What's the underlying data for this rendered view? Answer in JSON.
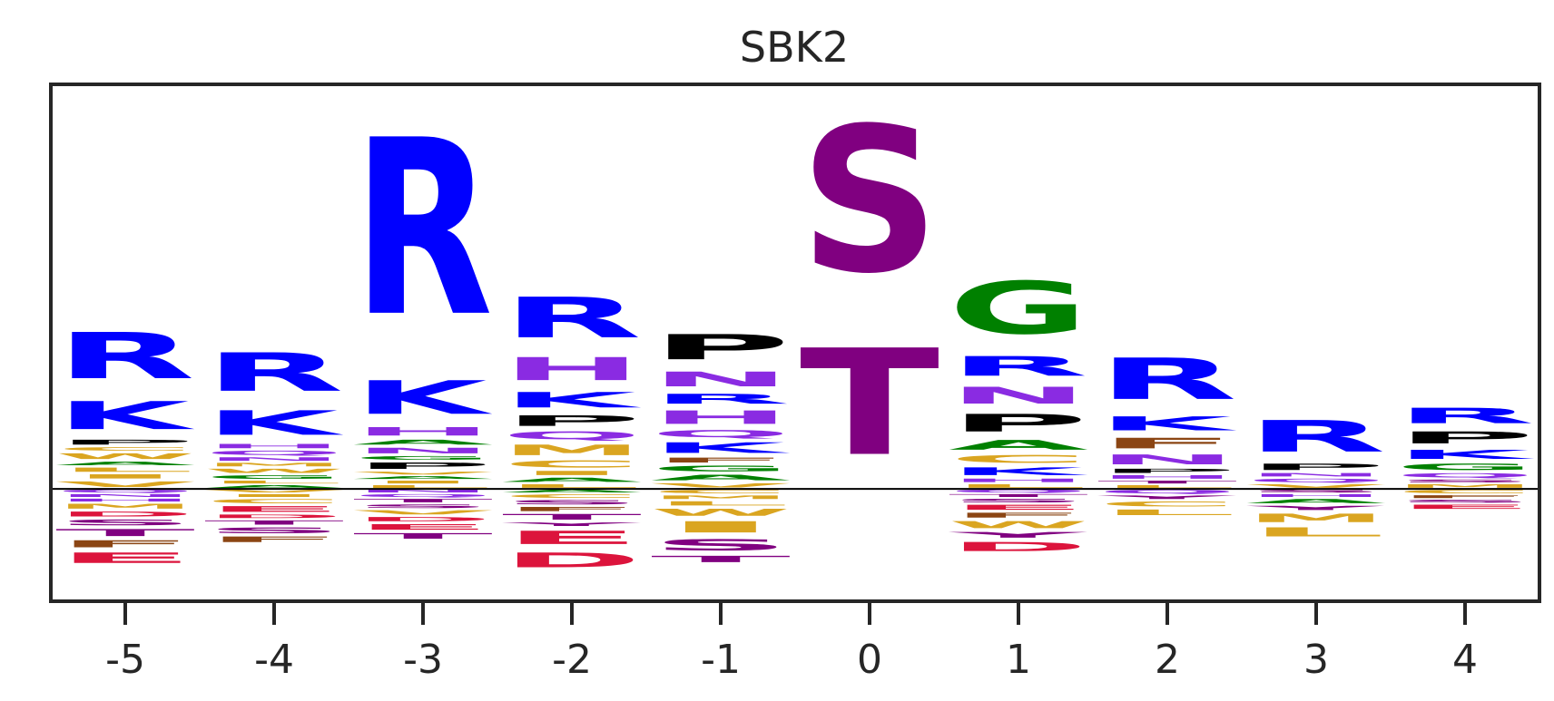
{
  "chart_data": {
    "type": "sequence-logo",
    "title": "SBK2",
    "xlabel": "",
    "ylabel": "",
    "x_ticks": [
      "-5",
      "-4",
      "-3",
      "-2",
      "-1",
      "0",
      "1",
      "2",
      "3",
      "4"
    ],
    "ylim": [
      -1.0,
      3.6
    ],
    "baseline": 0,
    "grid": false,
    "legend": "none",
    "colors": {
      "R": "#0000ff",
      "K": "#0000ff",
      "H": "#8a2be2",
      "S": "#800080",
      "T": "#800080",
      "Y": "#800080",
      "N": "#8a2be2",
      "Q": "#8a2be2",
      "G": "#008000",
      "A": "#008000",
      "P": "#000000",
      "D": "#dc143c",
      "E": "#dc143c",
      "C": "#daa520",
      "M": "#daa520",
      "V": "#daa520",
      "I": "#daa520",
      "L": "#daa520",
      "W": "#daa520",
      "F": "#8b4513"
    },
    "positions": [
      {
        "pos": "-5",
        "up": [
          [
            "V",
            0.08
          ],
          [
            "I",
            0.06
          ],
          [
            "L",
            0.06
          ],
          [
            "A",
            0.05
          ],
          [
            "W",
            0.08
          ],
          [
            "C",
            0.05
          ],
          [
            "P",
            0.07
          ],
          [
            "K",
            0.4
          ],
          [
            "R",
            0.66
          ]
        ],
        "down": [
          [
            "Q",
            0.04
          ],
          [
            "N",
            0.04
          ],
          [
            "H",
            0.04
          ],
          [
            "M",
            0.07
          ],
          [
            "D",
            0.07
          ],
          [
            "S",
            0.08
          ],
          [
            "T",
            0.1
          ],
          [
            "F",
            0.1
          ],
          [
            "E",
            0.15
          ]
        ]
      },
      {
        "pos": "-4",
        "up": [
          [
            "A",
            0.04
          ],
          [
            "L",
            0.04
          ],
          [
            "G",
            0.05
          ],
          [
            "W",
            0.06
          ],
          [
            "M",
            0.05
          ],
          [
            "N",
            0.05
          ],
          [
            "Q",
            0.06
          ],
          [
            "H",
            0.06
          ],
          [
            "K",
            0.35
          ],
          [
            "R",
            0.55
          ]
        ],
        "down": [
          [
            "V",
            0.04
          ],
          [
            "I",
            0.04
          ],
          [
            "C",
            0.06
          ],
          [
            "E",
            0.08
          ],
          [
            "D",
            0.05
          ],
          [
            "T",
            0.06
          ],
          [
            "S",
            0.08
          ],
          [
            "F",
            0.08
          ]
        ]
      },
      {
        "pos": "-3",
        "up": [
          [
            "L",
            0.04
          ],
          [
            "I",
            0.04
          ],
          [
            "A",
            0.04
          ],
          [
            "V",
            0.04
          ],
          [
            "P",
            0.09
          ],
          [
            "G",
            0.05
          ],
          [
            "N",
            0.08
          ],
          [
            "A",
            0.07
          ],
          [
            "H",
            0.12
          ],
          [
            "K",
            0.48
          ],
          [
            "R",
            2.52
          ]
        ],
        "down": [
          [
            "N",
            0.04
          ],
          [
            "Q",
            0.04
          ],
          [
            "T",
            0.05
          ],
          [
            "S",
            0.05
          ],
          [
            "V",
            0.06
          ],
          [
            "D",
            0.06
          ],
          [
            "E",
            0.08
          ],
          [
            "T",
            0.08
          ]
        ]
      },
      {
        "pos": "-2",
        "up": [
          [
            "L",
            0.05
          ],
          [
            "A",
            0.06
          ],
          [
            "I",
            0.06
          ],
          [
            "C",
            0.1
          ],
          [
            "M",
            0.15
          ],
          [
            "Q",
            0.11
          ],
          [
            "P",
            0.15
          ],
          [
            "K",
            0.22
          ],
          [
            "H",
            0.33
          ],
          [
            "R",
            0.58
          ]
        ],
        "down": [
          [
            "A",
            0.04
          ],
          [
            "C",
            0.05
          ],
          [
            "S",
            0.06
          ],
          [
            "F",
            0.06
          ],
          [
            "T",
            0.08
          ],
          [
            "Y",
            0.05
          ],
          [
            "E",
            0.19
          ],
          [
            "D",
            0.21
          ]
        ]
      },
      {
        "pos": "-1",
        "up": [
          [
            "V",
            0.06
          ],
          [
            "A",
            0.08
          ],
          [
            "G",
            0.08
          ],
          [
            "F",
            0.07
          ],
          [
            "K",
            0.15
          ],
          [
            "Q",
            0.1
          ],
          [
            "H",
            0.19
          ],
          [
            "R",
            0.14
          ],
          [
            "N",
            0.21
          ],
          [
            "P",
            0.36
          ]
        ],
        "down": [
          [
            "C",
            0.05
          ],
          [
            "M",
            0.05
          ],
          [
            "L",
            0.06
          ],
          [
            "W",
            0.1
          ],
          [
            "I",
            0.16
          ],
          [
            "S",
            0.16
          ],
          [
            "T",
            0.09
          ]
        ]
      },
      {
        "pos": "0",
        "up": [
          [
            "T",
            1.52
          ],
          [
            "S",
            2.08
          ]
        ],
        "down": []
      },
      {
        "pos": "1",
        "up": [
          [
            "L",
            0.05
          ],
          [
            "H",
            0.05
          ],
          [
            "K",
            0.11
          ],
          [
            "C",
            0.11
          ],
          [
            "A",
            0.14
          ],
          [
            "P",
            0.25
          ],
          [
            "N",
            0.24
          ],
          [
            "R",
            0.28
          ],
          [
            "G",
            0.75
          ]
        ],
        "down": [
          [
            "Q",
            0.04
          ],
          [
            "T",
            0.04
          ],
          [
            "S",
            0.05
          ],
          [
            "E",
            0.07
          ],
          [
            "F",
            0.07
          ],
          [
            "W",
            0.1
          ],
          [
            "Y",
            0.08
          ],
          [
            "D",
            0.13
          ]
        ]
      },
      {
        "pos": "2",
        "up": [
          [
            "L",
            0.04
          ],
          [
            "T",
            0.04
          ],
          [
            "H",
            0.05
          ],
          [
            "P",
            0.06
          ],
          [
            "N",
            0.14
          ],
          [
            "F",
            0.15
          ],
          [
            "K",
            0.2
          ],
          [
            "R",
            0.59
          ]
        ],
        "down": [
          [
            "Q",
            0.05
          ],
          [
            "Y",
            0.05
          ],
          [
            "C",
            0.07
          ],
          [
            "L",
            0.08
          ]
        ]
      },
      {
        "pos": "3",
        "up": [
          [
            "V",
            0.05
          ],
          [
            "Q",
            0.05
          ],
          [
            "N",
            0.05
          ],
          [
            "P",
            0.09
          ],
          [
            "R",
            0.45
          ]
        ],
        "down": [
          [
            "S",
            0.04
          ],
          [
            "H",
            0.04
          ],
          [
            "A",
            0.06
          ],
          [
            "Y",
            0.06
          ],
          [
            "M",
            0.12
          ],
          [
            "L",
            0.13
          ]
        ]
      },
      {
        "pos": "4",
        "up": [
          [
            "M",
            0.05
          ],
          [
            "S",
            0.04
          ],
          [
            "Q",
            0.06
          ],
          [
            "G",
            0.09
          ],
          [
            "K",
            0.13
          ],
          [
            "P",
            0.17
          ],
          [
            "R",
            0.22
          ]
        ],
        "down": [
          [
            "C",
            0.05
          ],
          [
            "F",
            0.04
          ],
          [
            "S",
            0.04
          ],
          [
            "E",
            0.06
          ]
        ]
      }
    ]
  }
}
